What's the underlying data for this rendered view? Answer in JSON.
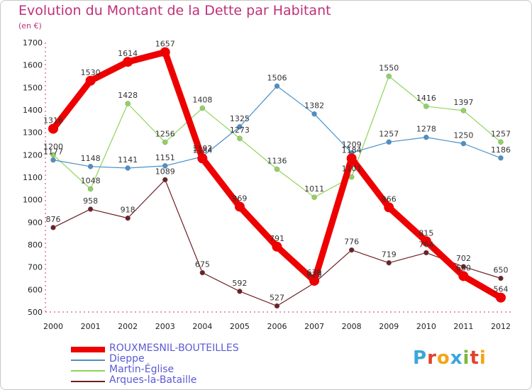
{
  "title": "Evolution du Montant de la Dette par Habitant",
  "subtitle": "(en €)",
  "logo": {
    "text": "Proxiti",
    "colors": [
      "#3aa7d9",
      "#e0432b",
      "#f2a516",
      "#3aa7d9",
      "#7ab83b",
      "#e0432b",
      "#f2a516"
    ]
  },
  "chart_data": {
    "type": "line",
    "title": "Evolution du Montant de la Dette par Habitant",
    "ylabel": "(en €)",
    "x": [
      "2000",
      "2001",
      "2002",
      "2003",
      "2004",
      "2005",
      "2006",
      "2007",
      "2008",
      "2009",
      "2010",
      "2011",
      "2012"
    ],
    "ylim": [
      500,
      1700
    ],
    "yticks": [
      500,
      600,
      700,
      800,
      900,
      1000,
      1100,
      1200,
      1300,
      1400,
      1500,
      1600,
      1700
    ],
    "grid": false,
    "legend": "bottom-left",
    "series": [
      {
        "name": "ROUXMESNIL-BOUTEILLES",
        "color": "#ee0000",
        "values": [
          1316,
          1530,
          1614,
          1657,
          1184,
          969,
          791,
          639,
          1184,
          966,
          815,
          660,
          564
        ],
        "labels": [
          "1316",
          "1530",
          "1614",
          "1657",
          "1184",
          "969",
          "791",
          "639",
          "1184",
          "966",
          "815",
          "660",
          "564"
        ]
      },
      {
        "name": "Dieppe",
        "color": "#4a90c8",
        "values": [
          1177,
          1148,
          1141,
          1151,
          1192,
          1325,
          1506,
          1382,
          1209,
          1257,
          1278,
          1250,
          1186
        ],
        "labels": [
          "1177",
          "1148",
          "1141",
          "1151",
          "1192",
          "1325",
          "1506",
          "1382",
          "1209",
          "1257",
          "1278",
          "1250",
          "1186"
        ]
      },
      {
        "name": "Martin-Église",
        "color": "#8fd45a",
        "values": [
          1200,
          1048,
          1428,
          1256,
          1408,
          1273,
          1136,
          1011,
          1101,
          1550,
          1416,
          1397,
          1257
        ],
        "labels": [
          "1200",
          "1048",
          "1428",
          "1256",
          "1408",
          "1273",
          "1136",
          "1011",
          "1101",
          "1550",
          "1416",
          "1397",
          "1257"
        ]
      },
      {
        "name": "Arques-la-Bataille",
        "color": "#6e1f24",
        "values": [
          876,
          958,
          918,
          1089,
          675,
          592,
          527,
          629,
          776,
          719,
          764,
          702,
          650
        ],
        "labels": [
          "876",
          "958",
          "918",
          "1089",
          "675",
          "592",
          "527",
          "629",
          "776",
          "719",
          "764",
          "702",
          "650"
        ]
      }
    ]
  }
}
